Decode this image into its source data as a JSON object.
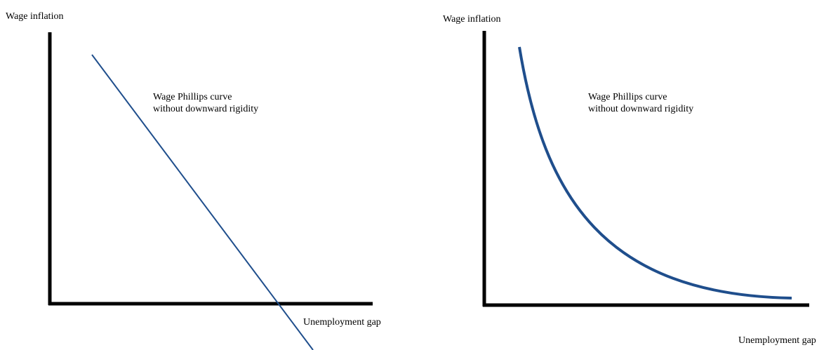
{
  "panels": [
    {
      "y_axis_label": "Wage inflation",
      "x_axis_label": "Unemployment gap",
      "curve_label": [
        "Wage Phillips curve",
        "without downward rigidity"
      ]
    },
    {
      "y_axis_label": "Wage inflation",
      "x_axis_label": "Unemployment gap",
      "curve_label": [
        "Wage Phillips curve",
        "without downward rigidity"
      ]
    }
  ]
}
